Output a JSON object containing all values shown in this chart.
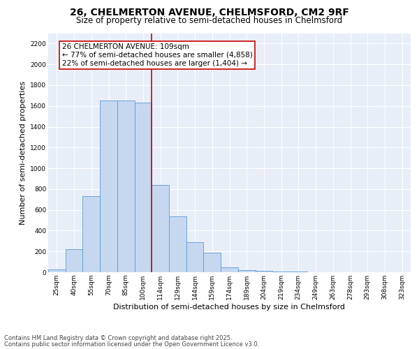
{
  "title_line1": "26, CHELMERTON AVENUE, CHELMSFORD, CM2 9RF",
  "title_line2": "Size of property relative to semi-detached houses in Chelmsford",
  "xlabel": "Distribution of semi-detached houses by size in Chelmsford",
  "ylabel": "Number of semi-detached properties",
  "categories": [
    "25sqm",
    "40sqm",
    "55sqm",
    "70sqm",
    "85sqm",
    "100sqm",
    "114sqm",
    "129sqm",
    "144sqm",
    "159sqm",
    "174sqm",
    "189sqm",
    "204sqm",
    "219sqm",
    "234sqm",
    "249sqm",
    "263sqm",
    "278sqm",
    "293sqm",
    "308sqm",
    "323sqm"
  ],
  "values": [
    30,
    220,
    730,
    1650,
    1650,
    1630,
    840,
    540,
    290,
    190,
    50,
    20,
    15,
    10,
    5,
    0,
    0,
    0,
    0,
    0,
    0
  ],
  "bar_color": "#c5d8f0",
  "bar_edge_color": "#5b9bd5",
  "vline_x_index": 6,
  "vline_color": "#cc0000",
  "annotation_line1": "26 CHELMERTON AVENUE: 109sqm",
  "annotation_line2": "← 77% of semi-detached houses are smaller (4,858)",
  "annotation_line3": "22% of semi-detached houses are larger (1,404) →",
  "annotation_box_color": "#ffffff",
  "annotation_box_edge": "#cc0000",
  "ylim": [
    0,
    2300
  ],
  "yticks": [
    0,
    200,
    400,
    600,
    800,
    1000,
    1200,
    1400,
    1600,
    1800,
    2000,
    2200
  ],
  "plot_background": "#e8eef8",
  "footer_line1": "Contains HM Land Registry data © Crown copyright and database right 2025.",
  "footer_line2": "Contains public sector information licensed under the Open Government Licence v3.0.",
  "title_fontsize": 10,
  "subtitle_fontsize": 8.5,
  "tick_fontsize": 6.5,
  "label_fontsize": 8,
  "annotation_fontsize": 7.5,
  "footer_fontsize": 6
}
